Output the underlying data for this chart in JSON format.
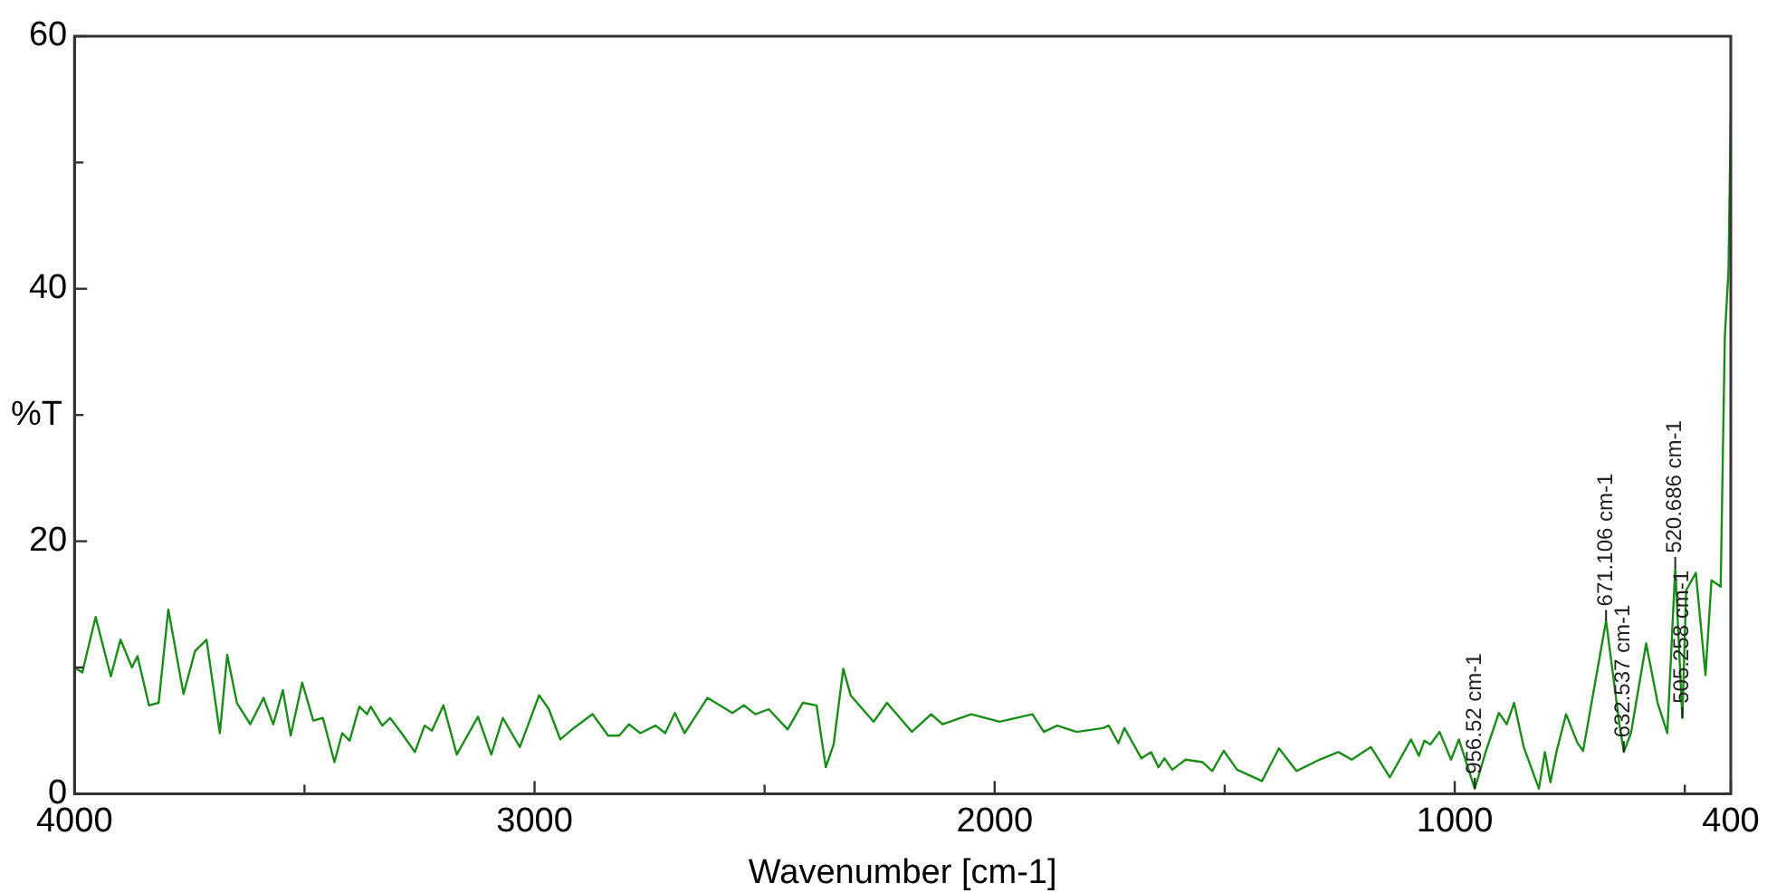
{
  "chart_data": {
    "type": "line",
    "xlabel": "Wavenumber [cm-1]",
    "ylabel": "%T",
    "xlim": [
      4000,
      400
    ],
    "xticks": [
      4000,
      {
        "value": 3500,
        "label": null
      },
      3000,
      {
        "value": 2500,
        "label": null
      },
      2000,
      {
        "value": 1500,
        "label": null
      },
      1000,
      {
        "value": 500,
        "label": null
      },
      400
    ],
    "ylim": [
      0,
      60
    ],
    "yticks": [
      0,
      {
        "value": 10,
        "label": null
      },
      20,
      {
        "value": 30,
        "label": null
      },
      40,
      {
        "value": 50,
        "label": null
      },
      60
    ],
    "grid": false,
    "legend": false,
    "marker": "none",
    "line_style": "solid",
    "series": [
      {
        "color": "#1a8c1a",
        "x": [
          4000,
          3983,
          3954,
          3921,
          3900,
          3875,
          3863,
          3838,
          3817,
          3796,
          3763,
          3738,
          3713,
          3684,
          3668,
          3647,
          3618,
          3589,
          3568,
          3547,
          3530,
          3505,
          3481,
          3460,
          3435,
          3418,
          3402,
          3381,
          3364,
          3356,
          3331,
          3314,
          3289,
          3260,
          3239,
          3223,
          3198,
          3169,
          3123,
          3094,
          3069,
          3032,
          2990,
          2969,
          2944,
          2915,
          2874,
          2840,
          2816,
          2795,
          2770,
          2737,
          2716,
          2695,
          2674,
          2624,
          2570,
          2545,
          2520,
          2491,
          2450,
          2417,
          2387,
          2367,
          2350,
          2329,
          2313,
          2263,
          2234,
          2180,
          2138,
          2113,
          2051,
          1989,
          1918,
          1893,
          1864,
          1822,
          1764,
          1752,
          1731,
          1718,
          1681,
          1660,
          1644,
          1631,
          1614,
          1585,
          1548,
          1527,
          1502,
          1473,
          1419,
          1382,
          1344,
          1294,
          1253,
          1224,
          1182,
          1141,
          1095,
          1078,
          1066,
          1053,
          1033,
          1008,
          991,
          956.52,
          932,
          904,
          887,
          871,
          850,
          817,
          804,
          792,
          779,
          758,
          733,
          721,
          671.106,
          642,
          632.537,
          617,
          584,
          559,
          538,
          520.686,
          505.258,
          497,
          476,
          455,
          442,
          422,
          413,
          405,
          400
        ],
        "values": [
          10.0,
          9.6,
          14.0,
          9.3,
          12.2,
          10.0,
          10.9,
          7.0,
          7.2,
          14.6,
          7.9,
          11.3,
          12.2,
          4.8,
          11.0,
          7.2,
          5.5,
          7.6,
          5.5,
          8.2,
          4.6,
          8.8,
          5.8,
          6.0,
          2.5,
          4.8,
          4.2,
          6.9,
          6.3,
          6.9,
          5.4,
          6.0,
          4.8,
          3.3,
          5.4,
          5.0,
          7.0,
          3.1,
          6.1,
          3.1,
          6.0,
          3.7,
          7.8,
          6.7,
          4.3,
          5.2,
          6.3,
          4.6,
          4.6,
          5.5,
          4.8,
          5.4,
          4.8,
          6.4,
          4.8,
          7.6,
          6.4,
          7.0,
          6.3,
          6.7,
          5.1,
          7.2,
          7.0,
          2.1,
          3.9,
          9.9,
          7.8,
          5.7,
          7.2,
          4.9,
          6.3,
          5.5,
          6.3,
          5.7,
          6.3,
          4.9,
          5.4,
          4.9,
          5.2,
          5.4,
          4.0,
          5.2,
          2.8,
          3.3,
          2.1,
          2.8,
          1.9,
          2.7,
          2.5,
          1.8,
          3.4,
          1.9,
          1.0,
          3.6,
          1.8,
          2.7,
          3.3,
          2.7,
          3.7,
          1.3,
          4.3,
          3.0,
          4.2,
          3.9,
          4.9,
          2.7,
          4.3,
          0.4,
          3.4,
          6.4,
          5.5,
          7.2,
          3.7,
          0.4,
          3.3,
          0.9,
          3.3,
          6.3,
          4.0,
          3.4,
          13.7,
          5.5,
          3.3,
          4.8,
          11.9,
          7.2,
          4.8,
          17.9,
          6.0,
          16.1,
          17.5,
          9.4,
          16.9,
          16.4,
          36.1,
          41.5,
          54
        ]
      }
    ],
    "annotations": [
      {
        "text": "956.52 cm-1",
        "x": 956.52,
        "y": 0.4
      },
      {
        "text": "671.106 cm-1",
        "x": 671.106,
        "y": 13.7
      },
      {
        "text": "632.537 cm-1",
        "x": 632.537,
        "y": 3.3
      },
      {
        "text": "520.686 cm-1",
        "x": 520.686,
        "y": 17.9
      },
      {
        "text": "505.258 cm-1",
        "x": 505.258,
        "y": 6.0
      }
    ]
  }
}
